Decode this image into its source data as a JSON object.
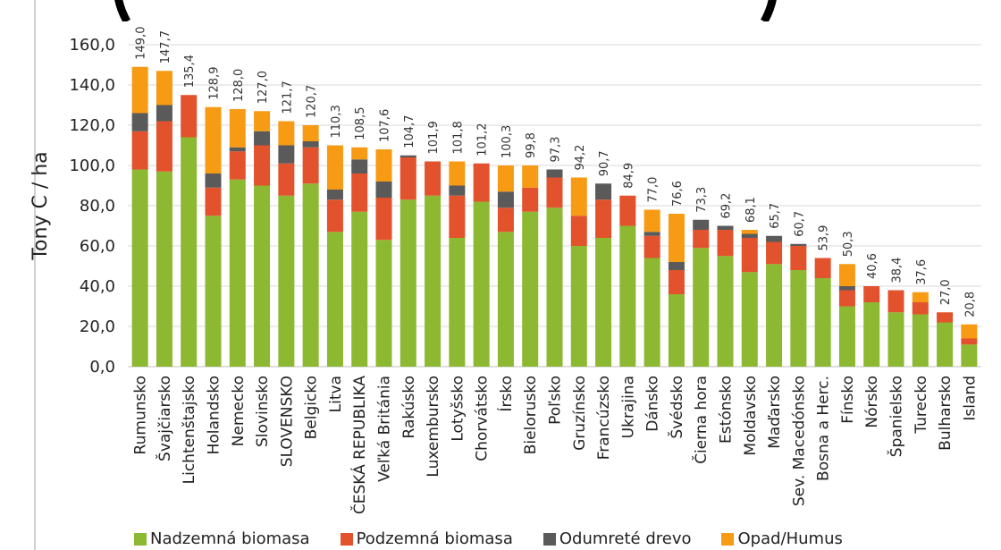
{
  "chart_data": {
    "type": "bar",
    "stacked": true,
    "ylabel": "Tony C / ha",
    "ylim": [
      0,
      160
    ],
    "yticks": [
      "0,0",
      "20,0",
      "40,0",
      "60,0",
      "80,0",
      "100,0",
      "120,0",
      "140,0",
      "160,0"
    ],
    "grid": true,
    "legend_position": "bottom",
    "categories": [
      "Rumunsko",
      "Švajčiarsko",
      "Lichtenštajsko",
      "Holandsko",
      "Nemecko",
      "Slovinsko",
      "SLOVENSKO",
      "Belgicko",
      "Litva",
      "ČESKÁ REPUBLIKA",
      "Veľká Británia",
      "Rakúsko",
      "Luxembursko",
      "Lotyšsko",
      "Chorvátsko",
      "Írsko",
      "Bielorusko",
      "Poľsko",
      "Gruzínsko",
      "Francúzsko",
      "Ukrajina",
      "Dánsko",
      "Švédsko",
      "Čierna hora",
      "Estónsko",
      "Moldavsko",
      "Maďarsko",
      "Sev. Macedónsko",
      "Bosna a Herc.",
      "Fínsko",
      "Nórsko",
      "Španielsko",
      "Turecko",
      "Bulharsko",
      "Island"
    ],
    "totals": [
      "149,0",
      "147,7",
      "135,4",
      "128,9",
      "128,0",
      "127,0",
      "121,7",
      "120,7",
      "110,3",
      "108,5",
      "107,6",
      "104,7",
      "101,9",
      "101,8",
      "101,2",
      "100,3",
      "99,8",
      "97,3",
      "94,2",
      "90,7",
      "84,9",
      "77,0",
      "76,6",
      "73,3",
      "69,2",
      "68,1",
      "65,7",
      "60,7",
      "53,9",
      "50,3",
      "40,6",
      "38,4",
      "37,6",
      "27,0",
      "20,8"
    ],
    "series": [
      {
        "name": "Nadzemná biomasa",
        "color": "#8db832",
        "values": [
          98,
          97,
          114,
          75,
          93,
          90,
          85,
          91,
          67,
          77,
          63,
          83,
          85,
          64,
          82,
          67,
          77,
          79,
          60,
          64,
          70,
          54,
          36,
          59,
          55,
          47,
          51,
          48,
          44,
          30,
          32,
          27,
          26,
          22,
          11
        ]
      },
      {
        "name": "Podzemná biomasa",
        "color": "#e2522c",
        "values": [
          19,
          25,
          21,
          14,
          14,
          20,
          16,
          18,
          16,
          19,
          21,
          21,
          17,
          21,
          19,
          12,
          12,
          15,
          15,
          19,
          15,
          11,
          12,
          9,
          13,
          17,
          11,
          12,
          10,
          8,
          8,
          11,
          6,
          5,
          3
        ]
      },
      {
        "name": "Odumreté drevo",
        "color": "#5a5a5a",
        "values": [
          9,
          8,
          0,
          7,
          2,
          7,
          9,
          3,
          5,
          7,
          8,
          1,
          0,
          5,
          0,
          8,
          0,
          4,
          0,
          8,
          0,
          2,
          4,
          5,
          2,
          2,
          3,
          1,
          0,
          2,
          0,
          0,
          0,
          0,
          0
        ]
      },
      {
        "name": "Opad/Humus",
        "color": "#f79a14",
        "values": [
          23,
          17,
          0,
          33,
          19,
          10,
          12,
          8,
          22,
          6,
          16,
          0,
          0,
          12,
          0,
          13,
          11,
          0,
          19,
          0,
          0,
          11,
          24,
          0,
          0,
          2,
          0,
          0,
          0,
          11,
          0,
          0,
          5,
          0,
          7
        ]
      }
    ]
  }
}
